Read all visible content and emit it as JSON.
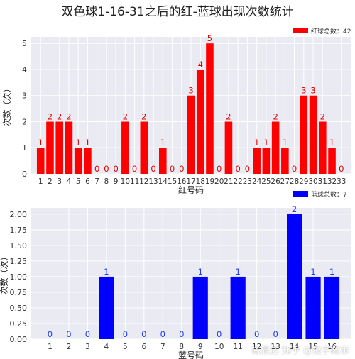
{
  "title": "双色球1-16-31之后的红-蓝球出现次数统计",
  "watermark": "知乎 @数字故事",
  "watermark_logo": "裕辰达",
  "colors": {
    "red": "#ff0000",
    "blue": "#0000ff",
    "plot_bg": "#eaeaf2",
    "grid": "#ffffff",
    "red_label": "#dd0000",
    "blue_label": "#1f3cff"
  },
  "chart_data": [
    {
      "type": "bar",
      "categories": [
        "1",
        "2",
        "3",
        "4",
        "5",
        "6",
        "7",
        "8",
        "9",
        "10",
        "11",
        "12",
        "13",
        "14",
        "15",
        "16",
        "17",
        "18",
        "19",
        "20",
        "21",
        "22",
        "23",
        "24",
        "25",
        "26",
        "27",
        "28",
        "29",
        "30",
        "31",
        "32",
        "33"
      ],
      "series": [
        {
          "name": "红球总数：42",
          "values": [
            1,
            2,
            2,
            2,
            1,
            1,
            0,
            0,
            0,
            2,
            0,
            2,
            0,
            1,
            0,
            0,
            3,
            4,
            5,
            0,
            2,
            0,
            0,
            1,
            1,
            2,
            1,
            0,
            3,
            3,
            2,
            1,
            0
          ]
        }
      ],
      "xlabel": "红号码",
      "ylabel": "次数（次）",
      "ylim": [
        0,
        5.25
      ],
      "yticks": [
        "0",
        "1",
        "2",
        "3",
        "4",
        "5"
      ],
      "grid": true,
      "legend": "top-right"
    },
    {
      "type": "bar",
      "categories": [
        "1",
        "2",
        "3",
        "4",
        "5",
        "6",
        "7",
        "8",
        "9",
        "10",
        "11",
        "12",
        "13",
        "14",
        "15",
        "16"
      ],
      "series": [
        {
          "name": "蓝球总数：7",
          "values": [
            0,
            0,
            0,
            1,
            0,
            0,
            0,
            0,
            1,
            0,
            1,
            0,
            0,
            2,
            1,
            1
          ]
        }
      ],
      "xlabel": "蓝号码",
      "ylabel": "次数（次）",
      "ylim": [
        0,
        2.1
      ],
      "yticks": [
        "0.00",
        "0.25",
        "0.50",
        "0.75",
        "1.00",
        "1.25",
        "1.50",
        "1.75",
        "2.00"
      ],
      "grid": true,
      "legend": "top-right"
    }
  ]
}
